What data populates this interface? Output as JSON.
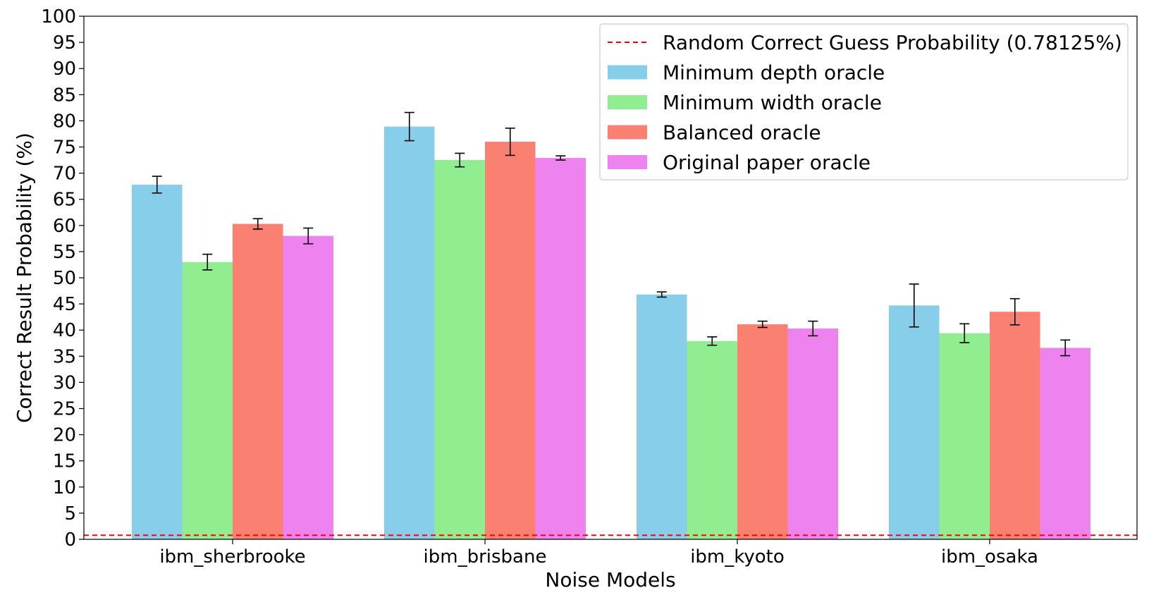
{
  "chart_data": {
    "type": "bar",
    "xlabel": "Noise Models",
    "ylabel": "Correct Result Probability (%)",
    "ylim": [
      0,
      100
    ],
    "yticks": [
      0,
      5,
      10,
      15,
      20,
      25,
      30,
      35,
      40,
      45,
      50,
      55,
      60,
      65,
      70,
      75,
      80,
      85,
      90,
      95,
      100
    ],
    "categories": [
      "ibm_sherbrooke",
      "ibm_brisbane",
      "ibm_kyoto",
      "ibm_osaka"
    ],
    "series": [
      {
        "name": "Minimum depth oracle",
        "color": "#87ceeb",
        "values": [
          67.8,
          78.9,
          46.8,
          44.7
        ],
        "errors": [
          1.6,
          2.7,
          0.5,
          4.1
        ]
      },
      {
        "name": "Minimum width oracle",
        "color": "#90ee90",
        "values": [
          53.0,
          72.5,
          37.9,
          39.4
        ],
        "errors": [
          1.5,
          1.3,
          0.8,
          1.8
        ]
      },
      {
        "name": "Balanced oracle",
        "color": "#fa8072",
        "values": [
          60.3,
          76.0,
          41.1,
          43.5
        ],
        "errors": [
          1.0,
          2.6,
          0.6,
          2.5
        ]
      },
      {
        "name": "Original paper oracle",
        "color": "#ee82ee",
        "values": [
          58.0,
          72.9,
          40.3,
          36.6
        ],
        "errors": [
          1.5,
          0.4,
          1.4,
          1.5
        ]
      }
    ],
    "reference_line": {
      "label": "Random Correct Guess Probability (0.78125%)",
      "value": 0.78125,
      "color": "#ff0000",
      "style": "dashed"
    },
    "legend_position": "top-right",
    "grid": false
  }
}
